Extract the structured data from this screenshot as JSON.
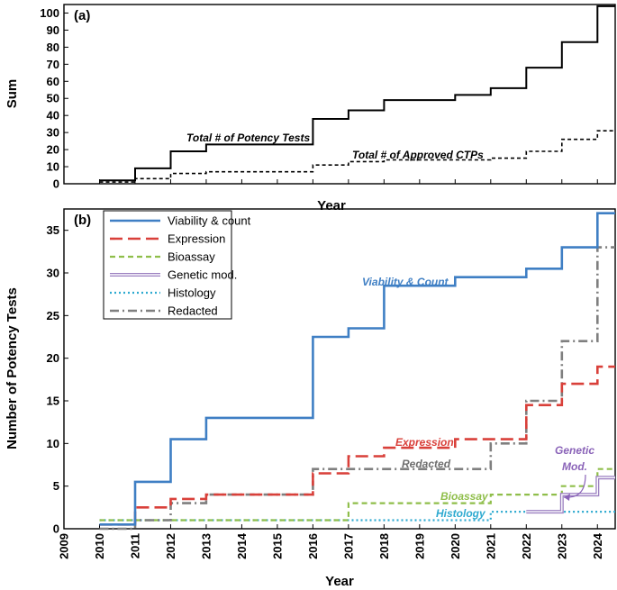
{
  "chart_data": [
    {
      "panel": "(a)",
      "type": "line",
      "step": true,
      "title": "",
      "xlabel": "Year",
      "ylabel": "Sum",
      "xlim": [
        2009,
        2024.5
      ],
      "ylim": [
        0,
        105
      ],
      "yticks": [
        "0",
        "10",
        "20",
        "30",
        "40",
        "50",
        "60",
        "70",
        "80",
        "90",
        "100"
      ],
      "grid": false,
      "series": [
        {
          "name": "Total # of Potency Tests",
          "color": "#000000",
          "style": "solid",
          "x": [
            2010,
            2011,
            2012,
            2013,
            2016,
            2017,
            2018,
            2020,
            2021,
            2022,
            2023,
            2024,
            2024.5
          ],
          "values": [
            2,
            9,
            19,
            23,
            38,
            43,
            49,
            52,
            56,
            68,
            83,
            104,
            104
          ]
        },
        {
          "name": "Total # of Approved CTPs",
          "color": "#000000",
          "style": "dashed",
          "x": [
            2010,
            2011,
            2012,
            2013,
            2016,
            2017,
            2018,
            2021,
            2022,
            2023,
            2024,
            2024.5
          ],
          "values": [
            1,
            3,
            6,
            7,
            11,
            13,
            14,
            15,
            19,
            26,
            31,
            31
          ]
        }
      ],
      "annotations": [
        "Total # of Potency Tests",
        "Total # of Approved CTPs"
      ]
    },
    {
      "panel": "(b)",
      "type": "line",
      "step": true,
      "title": "",
      "xlabel": "Year",
      "ylabel": "Number of Potency Tests",
      "xlim": [
        2009,
        2024.5
      ],
      "ylim": [
        0,
        37.5
      ],
      "xticks": [
        "2009",
        "2010",
        "2011",
        "2012",
        "2013",
        "2014",
        "2015",
        "2016",
        "2017",
        "2018",
        "2019",
        "2020",
        "2021",
        "2022",
        "2023",
        "2024"
      ],
      "yticks": [
        "0",
        "5",
        "10",
        "15",
        "20",
        "25",
        "30",
        "35"
      ],
      "grid": false,
      "legend_position": "top-left",
      "series": [
        {
          "name": "Viability & count",
          "color": "#3f7fc4",
          "style": "solid",
          "x": [
            2010,
            2011,
            2012,
            2013,
            2016,
            2017,
            2018,
            2020,
            2022,
            2023,
            2024,
            2024.5
          ],
          "values": [
            0.5,
            5.5,
            10.5,
            13,
            22.5,
            23.5,
            28.5,
            29.5,
            30.5,
            33,
            37,
            37
          ]
        },
        {
          "name": "Expression",
          "color": "#d9403a",
          "style": "longdash",
          "x": [
            2010,
            2011,
            2012,
            2013,
            2016,
            2017,
            2018,
            2020,
            2022,
            2023,
            2024,
            2024.5
          ],
          "values": [
            0.5,
            2.5,
            3.5,
            4,
            6.5,
            8.5,
            9.5,
            10.5,
            14.5,
            17,
            19,
            19
          ]
        },
        {
          "name": "Bioassay",
          "color": "#8fbe4a",
          "style": "dashed",
          "x": [
            2010,
            2012,
            2017,
            2021,
            2023,
            2024,
            2024.5
          ],
          "values": [
            1,
            1,
            3,
            4,
            5,
            7,
            7
          ]
        },
        {
          "name": "Genetic mod.",
          "color": "#9b7fc0",
          "style": "double",
          "x": [
            2022,
            2023,
            2024,
            2024.5
          ],
          "values": [
            2,
            4,
            6,
            6
          ]
        },
        {
          "name": "Histology",
          "color": "#2eaad0",
          "style": "dotted",
          "x": [
            2010,
            2021,
            2024.5
          ],
          "values": [
            1,
            2,
            2
          ]
        },
        {
          "name": "Redacted",
          "color": "#7f7f7f",
          "style": "dashdot",
          "x": [
            2010,
            2011,
            2012,
            2013,
            2016,
            2017,
            2021,
            2022,
            2023,
            2024,
            2024.5
          ],
          "values": [
            0,
            1,
            3,
            4,
            7,
            7,
            10,
            15,
            22,
            33,
            33
          ]
        }
      ],
      "annotations": [
        {
          "text": "Viability & Count",
          "color": "#3f7fc4"
        },
        {
          "text": "Expression",
          "color": "#d9403a"
        },
        {
          "text": "Redacted",
          "color": "#6f6f6f"
        },
        {
          "text": "Bioassay",
          "color": "#8fbe4a"
        },
        {
          "text": "Histology",
          "color": "#2eaad0"
        },
        {
          "text": "Genetic",
          "color": "#8a63b8"
        },
        {
          "text": "Mod.",
          "color": "#8a63b8"
        }
      ]
    }
  ]
}
